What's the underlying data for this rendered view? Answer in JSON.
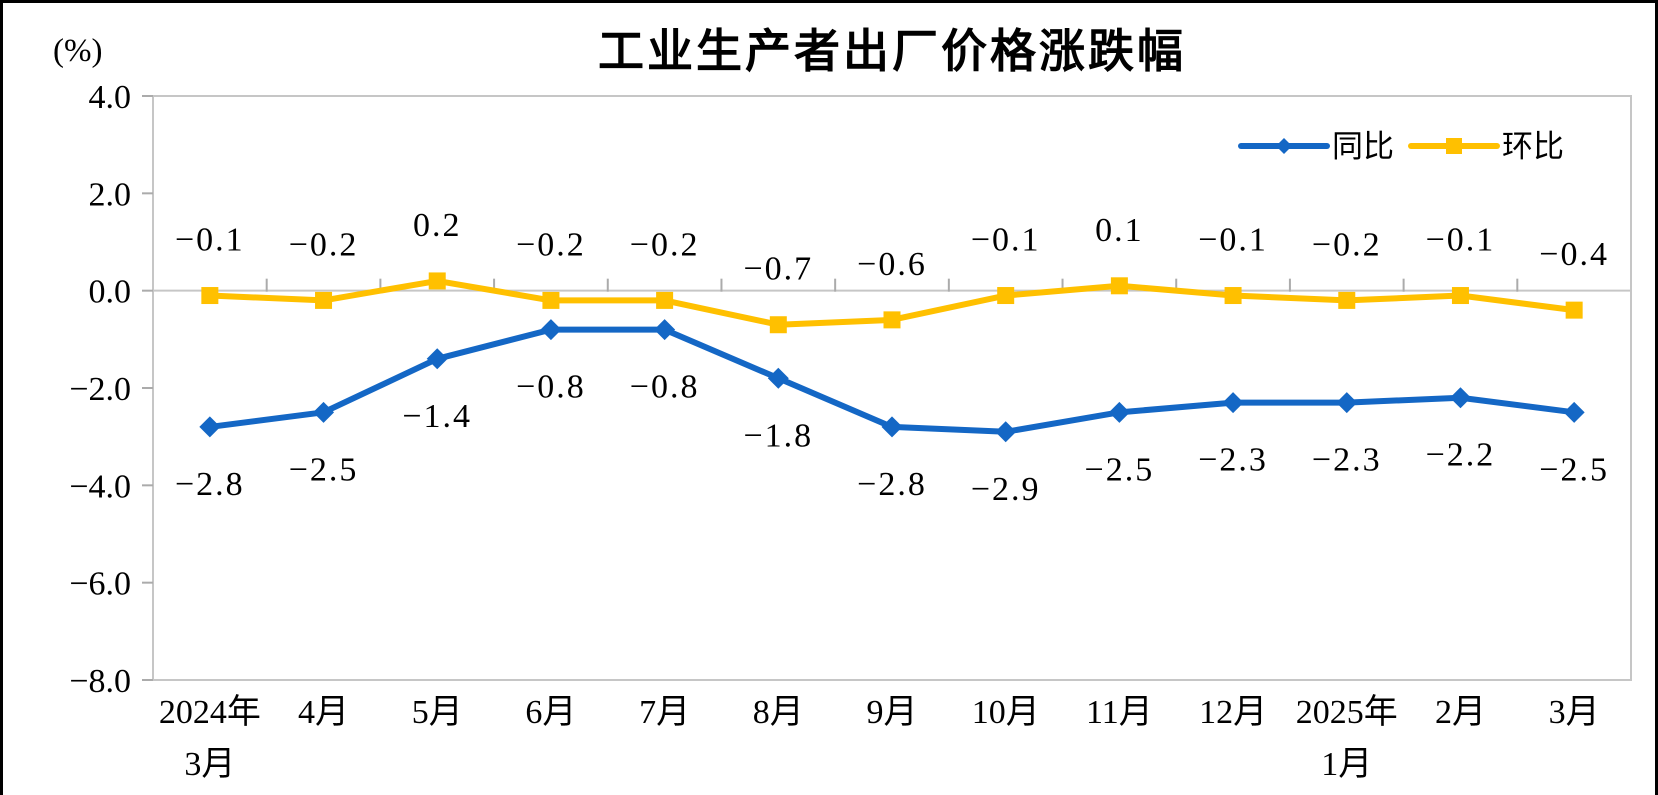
{
  "chart_data": {
    "type": "line",
    "title": "工业生产者出厂价格涨跌幅",
    "ylabel": "(%)",
    "categories": [
      "2024年\n3月",
      "4月",
      "5月",
      "6月",
      "7月",
      "8月",
      "9月",
      "10月",
      "11月",
      "12月",
      "2025年\n1月",
      "2月",
      "3月"
    ],
    "series": [
      {
        "name": "同比",
        "marker": "diamond",
        "color": "#1467C5",
        "label_position": "below",
        "values": [
          -2.8,
          -2.5,
          -1.4,
          -0.8,
          -0.8,
          -1.8,
          -2.8,
          -2.9,
          -2.5,
          -2.3,
          -2.3,
          -2.2,
          -2.5
        ]
      },
      {
        "name": "环比",
        "marker": "square",
        "color": "#FFC000",
        "label_position": "above",
        "values": [
          -0.1,
          -0.2,
          0.2,
          -0.2,
          -0.2,
          -0.7,
          -0.6,
          -0.1,
          0.1,
          -0.1,
          -0.2,
          -0.1,
          -0.4
        ]
      }
    ],
    "ylim": [
      -8.0,
      4.0
    ],
    "ytick_step": 2.0,
    "yticks": [
      "4.0",
      "2.0",
      "0.0",
      "-2.0",
      "-4.0",
      "-6.0",
      "-8.0"
    ],
    "legend_position": "top-right",
    "legend_entries": [
      "同比",
      "环比"
    ],
    "grid": "zero-line-only",
    "colors": {
      "axis": "#C6C6C6",
      "tick": "#ABABAB",
      "text": "#000000",
      "background": "#FFFFFF"
    }
  }
}
